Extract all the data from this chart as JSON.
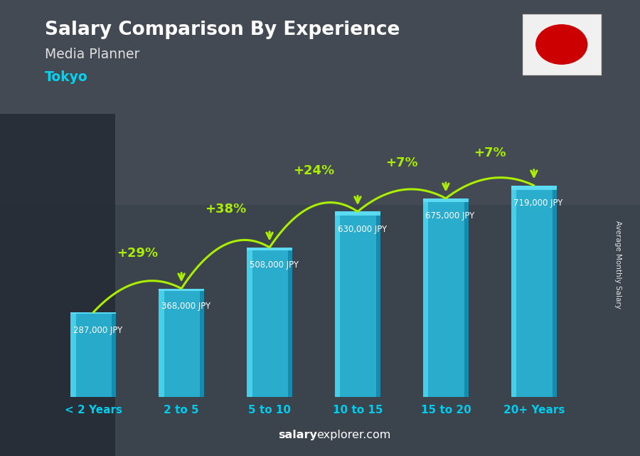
{
  "title": "Salary Comparison By Experience",
  "subtitle": "Media Planner",
  "city": "Tokyo",
  "categories": [
    "< 2 Years",
    "2 to 5",
    "5 to 10",
    "10 to 15",
    "15 to 20",
    "20+ Years"
  ],
  "values": [
    287000,
    368000,
    508000,
    630000,
    675000,
    719000
  ],
  "labels": [
    "287,000 JPY",
    "368,000 JPY",
    "508,000 JPY",
    "630,000 JPY",
    "675,000 JPY",
    "719,000 JPY"
  ],
  "increases": [
    null,
    "+29%",
    "+38%",
    "+24%",
    "+7%",
    "+7%"
  ],
  "bar_face_color": "#29b6d8",
  "bar_left_color": "#4dd6f0",
  "bar_right_color": "#1488aa",
  "bar_top_color": "#60e0f8",
  "background_color": "#5a6570",
  "title_color": "#ffffff",
  "subtitle_color": "#e0e0e0",
  "city_color": "#00d4f0",
  "label_color": "#ffffff",
  "increase_color": "#aaee00",
  "tick_color": "#00ccee",
  "ylabel": "Average Monthly Salary",
  "footer_salary": "salary",
  "footer_rest": "explorer.com",
  "figsize": [
    9.0,
    6.41
  ],
  "ylim": [
    0,
    900000
  ],
  "flag_white": "#f0f0f0",
  "flag_red": "#CC0000"
}
